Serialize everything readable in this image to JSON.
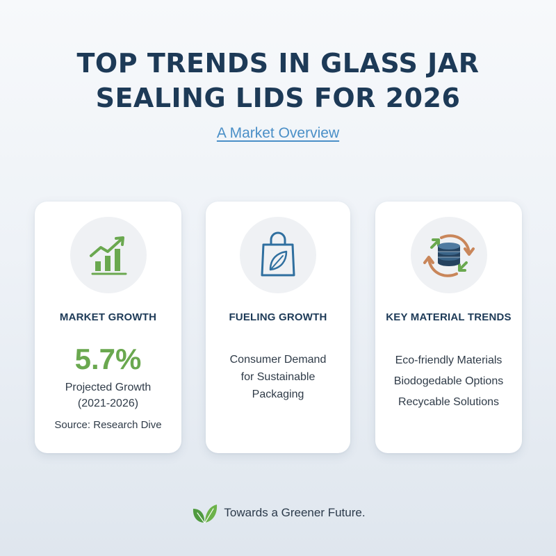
{
  "title": {
    "line1": "TOP TRENDS IN GLASS JAR",
    "line2": "SEALING LIDS FOR 2026"
  },
  "subtitle": "A Market Overview",
  "cards": [
    {
      "icon": "growth-chart-icon",
      "heading": "MARKET GROWTH",
      "value": "5.7%",
      "lines": [
        "Projected Growth",
        "(2021-2026)",
        "Source: Research Dive"
      ]
    },
    {
      "icon": "shopping-bag-leaf-icon",
      "heading": "FUELING GROWTH",
      "lines": [
        "Consumer Demand",
        "for Sustainable",
        "Packaging"
      ]
    },
    {
      "icon": "recycle-lids-icon",
      "heading": "KEY MATERIAL TRENDS",
      "lines": [
        "Eco-friendly Materials",
        "Biodogedable Options",
        "Recycable Solutions"
      ]
    }
  ],
  "footer": {
    "icon": "leaves-icon",
    "text": "Towards a Greener Future."
  },
  "colors": {
    "title": "#1d3a57",
    "accent_green": "#6aa84f",
    "link_blue": "#4a8fc7",
    "icon_blue": "#2f6f9f",
    "icon_brown": "#c9865a"
  }
}
